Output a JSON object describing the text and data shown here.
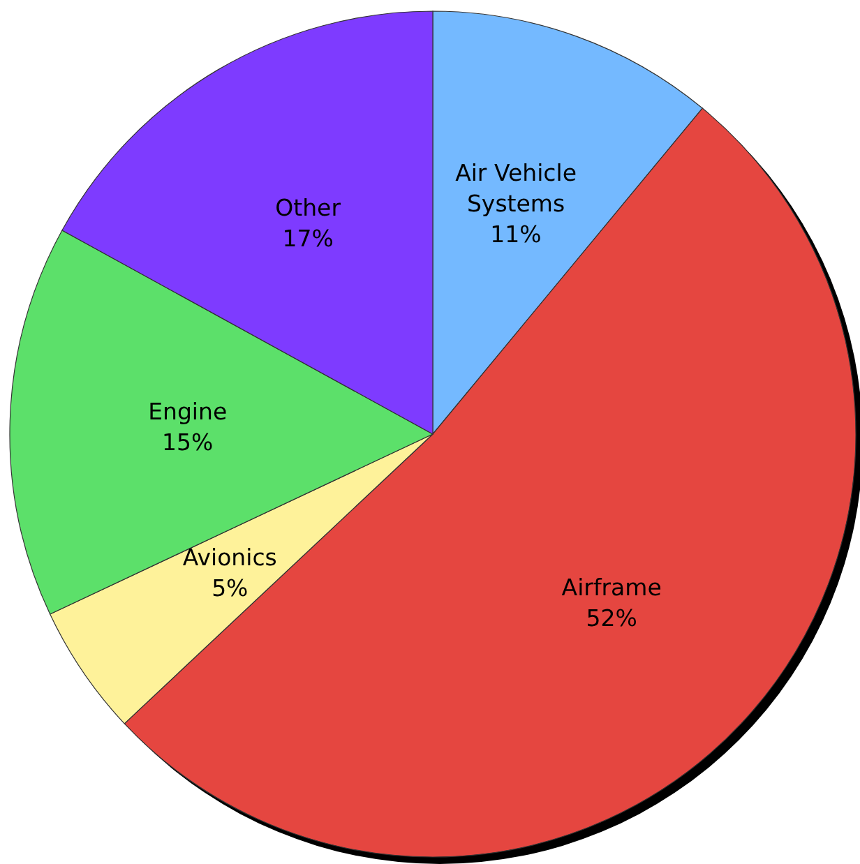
{
  "chart_data": {
    "type": "pie",
    "categories": [
      "Air Vehicle Systems",
      "Airframe",
      "Avionics",
      "Engine",
      "Other"
    ],
    "values": [
      11,
      52,
      5,
      15,
      17
    ],
    "colors": [
      "#74b9ff",
      "#e54640",
      "#fef29a",
      "#5ce06a",
      "#7e3bff"
    ],
    "value_labels": [
      "11%",
      "52%",
      "5%",
      "15%",
      "17%"
    ]
  }
}
